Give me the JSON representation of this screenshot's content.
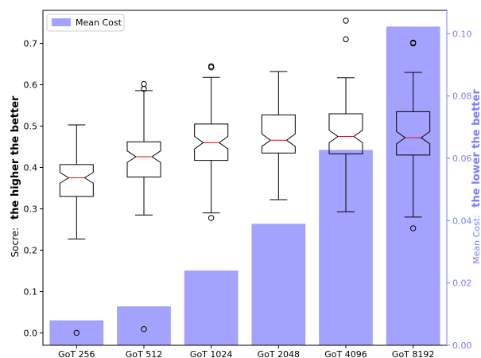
{
  "chart_data": {
    "type": "bar",
    "categories": [
      "GoT 256",
      "GoT 512",
      "GoT 1024",
      "GoT 2048",
      "GoT 4096",
      "GoT 8192"
    ],
    "legend": {
      "label": "Mean Cost",
      "position": "top-left"
    },
    "left_axis": {
      "label_prefix": "Socre:",
      "label_emphasis": "the higher the better",
      "ticks": [
        "0.0",
        "0.1",
        "0.2",
        "0.3",
        "0.4",
        "0.5",
        "0.6",
        "0.7"
      ],
      "ylim": [
        -0.03,
        0.78
      ]
    },
    "right_axis": {
      "label_prefix": "Mean Cost:",
      "label_emphasis": "the lower the better",
      "ticks": [
        "0.00",
        "0.02",
        "0.04",
        "0.06",
        "0.08",
        "0.10"
      ],
      "ylim": [
        0,
        0.1075
      ],
      "color": "#7b7bff"
    },
    "bar_series": {
      "name": "Mean Cost",
      "color": "#a3a3ff",
      "values": [
        0.008,
        0.0125,
        0.024,
        0.039,
        0.0627,
        0.1023
      ]
    },
    "box_series": {
      "median_color": "#ff0000",
      "boxes": [
        {
          "whisker_low": 0.227,
          "q1": 0.33,
          "median": 0.375,
          "q3": 0.407,
          "whisker_high": 0.503,
          "notch_low": 0.362,
          "notch_high": 0.388,
          "outliers": [
            0.0
          ]
        },
        {
          "whisker_low": 0.285,
          "q1": 0.377,
          "median": 0.426,
          "q3": 0.462,
          "whisker_high": 0.586,
          "notch_low": 0.412,
          "notch_high": 0.44,
          "outliers": [
            0.59,
            0.602,
            0.009
          ]
        },
        {
          "whisker_low": 0.29,
          "q1": 0.417,
          "median": 0.46,
          "q3": 0.505,
          "whisker_high": 0.618,
          "notch_low": 0.445,
          "notch_high": 0.475,
          "outliers": [
            0.642,
            0.645,
            0.278
          ]
        },
        {
          "whisker_low": 0.322,
          "q1": 0.435,
          "median": 0.466,
          "q3": 0.527,
          "whisker_high": 0.632,
          "notch_low": 0.451,
          "notch_high": 0.481,
          "outliers": []
        },
        {
          "whisker_low": 0.293,
          "q1": 0.433,
          "median": 0.475,
          "q3": 0.53,
          "whisker_high": 0.617,
          "notch_low": 0.46,
          "notch_high": 0.49,
          "outliers": [
            0.71,
            0.755
          ]
        },
        {
          "whisker_low": 0.28,
          "q1": 0.43,
          "median": 0.472,
          "q3": 0.535,
          "whisker_high": 0.63,
          "notch_low": 0.457,
          "notch_high": 0.487,
          "outliers": [
            0.7,
            0.702,
            0.253
          ]
        }
      ]
    }
  }
}
